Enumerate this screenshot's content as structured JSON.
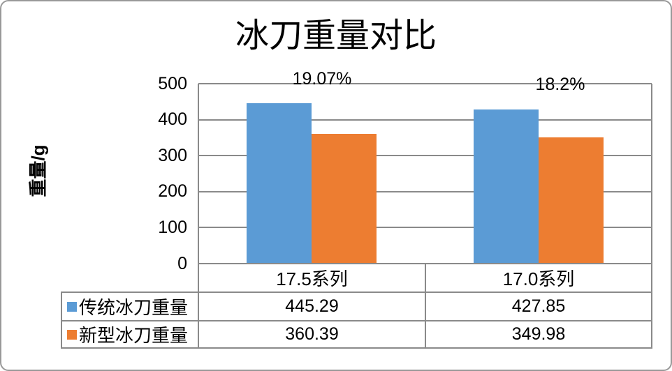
{
  "chart_data": {
    "type": "bar",
    "title": "冰刀重量对比",
    "ylabel": "重量/g",
    "xlabel": "",
    "ylim": [
      0,
      500
    ],
    "yticks": [
      0,
      100,
      200,
      300,
      400,
      500
    ],
    "grid": true,
    "legend_position": "table-left",
    "categories": [
      "17.5系列",
      "17.0系列"
    ],
    "series": [
      {
        "name": "传统冰刀重量",
        "color": "#5B9BD5",
        "values": [
          445.29,
          427.85
        ],
        "display_values": [
          "445.29",
          "427.85"
        ]
      },
      {
        "name": "新型冰刀重量",
        "color": "#ED7D31",
        "values": [
          360.39,
          349.98
        ],
        "display_values": [
          "360.39",
          "349.98"
        ]
      }
    ],
    "bar_labels": [
      "19.07%",
      "18.2%"
    ]
  },
  "colors": {
    "series_blue": "#5B9BD5",
    "series_orange": "#ED7D31",
    "gridline": "#8a8a8a",
    "table_border": "#8a8a8a",
    "figure_border": "#999999",
    "text": "#000000"
  }
}
